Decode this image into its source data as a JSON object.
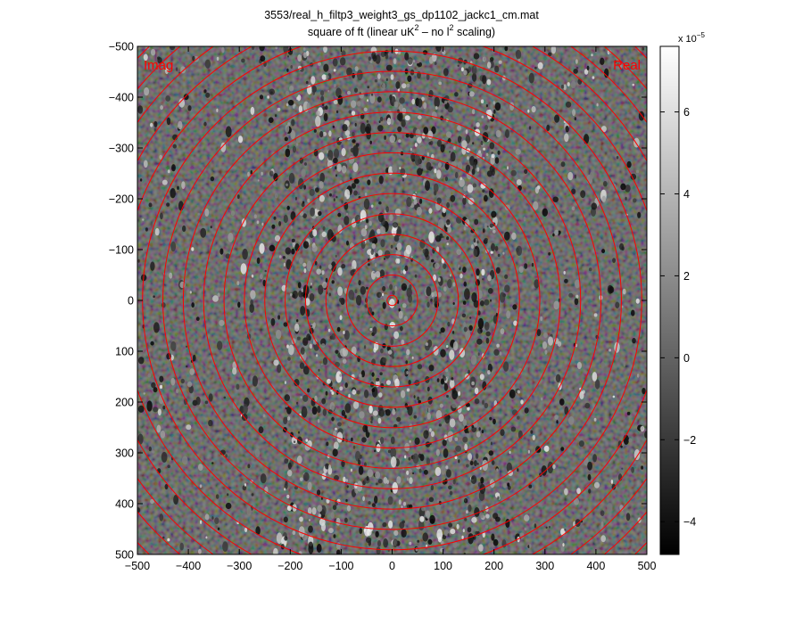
{
  "chart_data": {
    "type": "heatmap",
    "title_line1": "3553/real_h_filtp3_weight3_gs_dp1102_jackc1_cm.mat",
    "title_line2_pre": "square of ft (linear uK",
    "title_line2_sup1": "2",
    "title_line2_mid": " – no l",
    "title_line2_sup2": "2",
    "title_line2_post": " scaling)",
    "xlim": [
      -500,
      500
    ],
    "ylim": [
      -500,
      500
    ],
    "y_reversed": true,
    "x_ticks": [
      -500,
      -400,
      -300,
      -200,
      -100,
      0,
      100,
      200,
      300,
      400,
      500
    ],
    "y_ticks": [
      -500,
      -400,
      -300,
      -200,
      -100,
      0,
      100,
      200,
      300,
      400,
      500
    ],
    "x_tick_labels": [
      "−500",
      "−400",
      "−300",
      "−200",
      "−100",
      "0",
      "100",
      "200",
      "300",
      "400",
      "500"
    ],
    "y_tick_labels": [
      "−500",
      "−400",
      "−300",
      "−200",
      "−100",
      "0",
      "100",
      "200",
      "300",
      "400",
      "500"
    ],
    "colorbar": {
      "colormap": "gray",
      "range": [
        -4.8e-05,
        7.6e-05
      ],
      "ticks": [
        -4e-05,
        -2e-05,
        0,
        2e-05,
        4e-05,
        6e-05
      ],
      "tick_labels": [
        "−4",
        "−2",
        "0",
        "2",
        "4",
        "6"
      ],
      "exponent_base": "x 10",
      "exponent_power": "−5"
    },
    "ring_radii": [
      10,
      50,
      90,
      130,
      170,
      210,
      250,
      290,
      330,
      370,
      410,
      450,
      490,
      530,
      570,
      610,
      650,
      690
    ],
    "ring_color": "#ff0000",
    "background_value": -8e-06,
    "annotations": [
      {
        "text": "Imag",
        "position": "top-left",
        "color": "#ff0000"
      },
      {
        "text": "Real",
        "position": "top-right",
        "color": "#ff0000"
      }
    ]
  }
}
